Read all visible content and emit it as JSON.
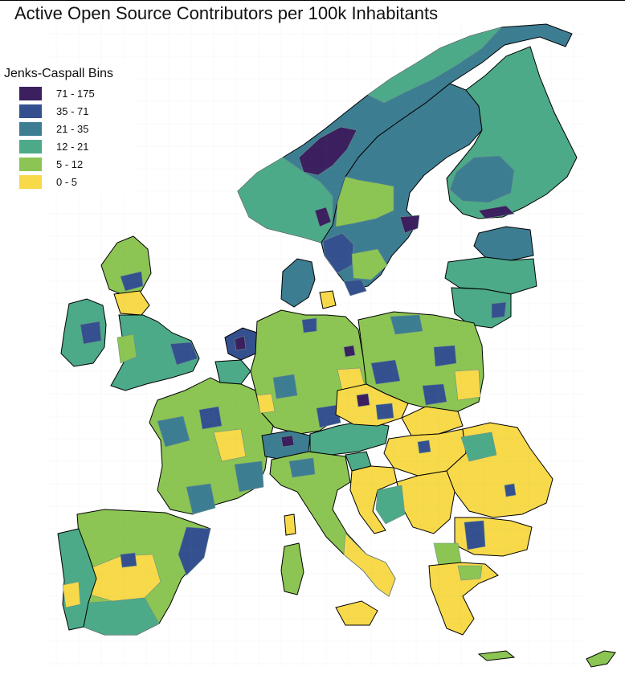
{
  "title": "Active Open Source Contributors per 100k Inhabitants",
  "legend": {
    "title": "Jenks-Caspall Bins",
    "bins": [
      {
        "label": "71 - 175",
        "color": "#3b1f5e"
      },
      {
        "label": "35 - 71",
        "color": "#35508f"
      },
      {
        "label": "21 - 35",
        "color": "#3d7d92"
      },
      {
        "label": "12 - 21",
        "color": "#4caa88"
      },
      {
        "label": "5 - 12",
        "color": "#8cc553"
      },
      {
        "label": "0 - 5",
        "color": "#f7d94a"
      }
    ]
  },
  "colors": {
    "border": "#000000",
    "region_border": "#6b8f8a",
    "background": "#ffffff"
  }
}
